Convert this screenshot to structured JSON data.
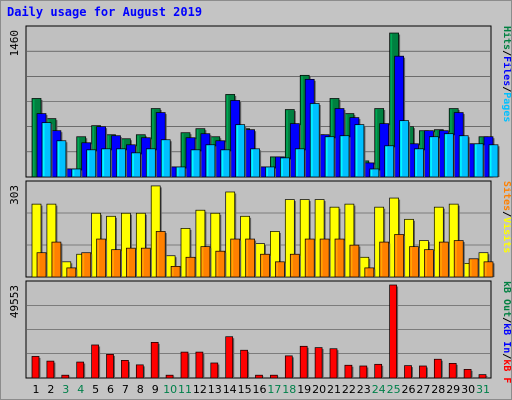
{
  "title": "Daily usage for August 2019",
  "colors": {
    "pages": "#00c0ff",
    "files": "#0000ff",
    "hits": "#008040",
    "visits": "#ffff00",
    "sites": "#ff8000",
    "kbytes": "#ff0000",
    "kbin": "#0000ff",
    "kbout": "#008040",
    "weekday_label": "#000000",
    "weekend_label": "#00804a",
    "axis_text": "#000000"
  },
  "chart_data": [
    {
      "type": "bar",
      "panel": "hits-files-pages",
      "ymax_label": "1460",
      "ylim": [
        0,
        1460
      ],
      "legend": [
        "Pages",
        "Files",
        "Hits"
      ],
      "categories": [
        "1",
        "2",
        "3",
        "4",
        "5",
        "6",
        "7",
        "8",
        "9",
        "10",
        "11",
        "12",
        "13",
        "14",
        "15",
        "16",
        "17",
        "18",
        "19",
        "20",
        "21",
        "22",
        "23",
        "24",
        "25",
        "26",
        "27",
        "28",
        "29",
        "30",
        "31"
      ],
      "series": [
        {
          "name": "Hits",
          "values": [
            780,
            580,
            80,
            400,
            510,
            420,
            380,
            420,
            680,
            100,
            440,
            480,
            400,
            820,
            480,
            100,
            200,
            670,
            1010,
            420,
            780,
            630,
            160,
            680,
            1430,
            500,
            460,
            470,
            680,
            330,
            400
          ]
        },
        {
          "name": "Files",
          "values": [
            630,
            460,
            80,
            340,
            500,
            410,
            320,
            390,
            640,
            100,
            390,
            430,
            360,
            760,
            470,
            100,
            200,
            530,
            970,
            420,
            680,
            590,
            140,
            530,
            1200,
            330,
            460,
            460,
            640,
            330,
            400
          ]
        },
        {
          "name": "Pages",
          "values": [
            540,
            360,
            80,
            270,
            280,
            280,
            240,
            280,
            370,
            100,
            270,
            320,
            270,
            520,
            280,
            100,
            190,
            280,
            730,
            400,
            410,
            520,
            80,
            310,
            560,
            280,
            400,
            430,
            410,
            330,
            320
          ]
        }
      ]
    },
    {
      "type": "bar",
      "panel": "visits-sites",
      "ymax_label": "303",
      "ylim": [
        0,
        303
      ],
      "legend": [
        "Visits",
        "Sites"
      ],
      "categories": [
        "1",
        "2",
        "3",
        "4",
        "5",
        "6",
        "7",
        "8",
        "9",
        "10",
        "11",
        "12",
        "13",
        "14",
        "15",
        "16",
        "17",
        "18",
        "19",
        "20",
        "21",
        "22",
        "23",
        "24",
        "25",
        "26",
        "27",
        "28",
        "29",
        "30",
        "31"
      ],
      "series": [
        {
          "name": "Visits",
          "values": [
            240,
            240,
            50,
            75,
            210,
            200,
            210,
            210,
            300,
            70,
            160,
            220,
            210,
            280,
            200,
            110,
            150,
            255,
            255,
            255,
            230,
            240,
            65,
            230,
            260,
            190,
            120,
            230,
            240,
            45,
            80
          ]
        },
        {
          "name": "Sites",
          "values": [
            80,
            115,
            30,
            80,
            125,
            90,
            95,
            95,
            150,
            35,
            65,
            100,
            85,
            125,
            125,
            75,
            50,
            75,
            125,
            125,
            125,
            105,
            30,
            115,
            140,
            100,
            90,
            115,
            120,
            60,
            50
          ]
        }
      ]
    },
    {
      "type": "bar",
      "panel": "kbytes",
      "ymax_label": "49553",
      "ylim": [
        0,
        49553
      ],
      "legend": [
        "kB F",
        "kB In",
        "kB Out"
      ],
      "categories": [
        "1",
        "2",
        "3",
        "4",
        "5",
        "6",
        "7",
        "8",
        "9",
        "10",
        "11",
        "12",
        "13",
        "14",
        "15",
        "16",
        "17",
        "18",
        "19",
        "20",
        "21",
        "22",
        "23",
        "24",
        "25",
        "26",
        "27",
        "28",
        "29",
        "30",
        "31"
      ],
      "series": [
        {
          "name": "kB F",
          "values": [
            11500,
            9000,
            1500,
            8500,
            17600,
            12600,
            9400,
            7000,
            19000,
            1500,
            13800,
            13800,
            8000,
            22000,
            14800,
            1500,
            1500,
            11800,
            16900,
            16200,
            15600,
            6800,
            6400,
            7300,
            49553,
            6600,
            6400,
            10000,
            7800,
            4600,
            1800
          ]
        }
      ]
    }
  ]
}
